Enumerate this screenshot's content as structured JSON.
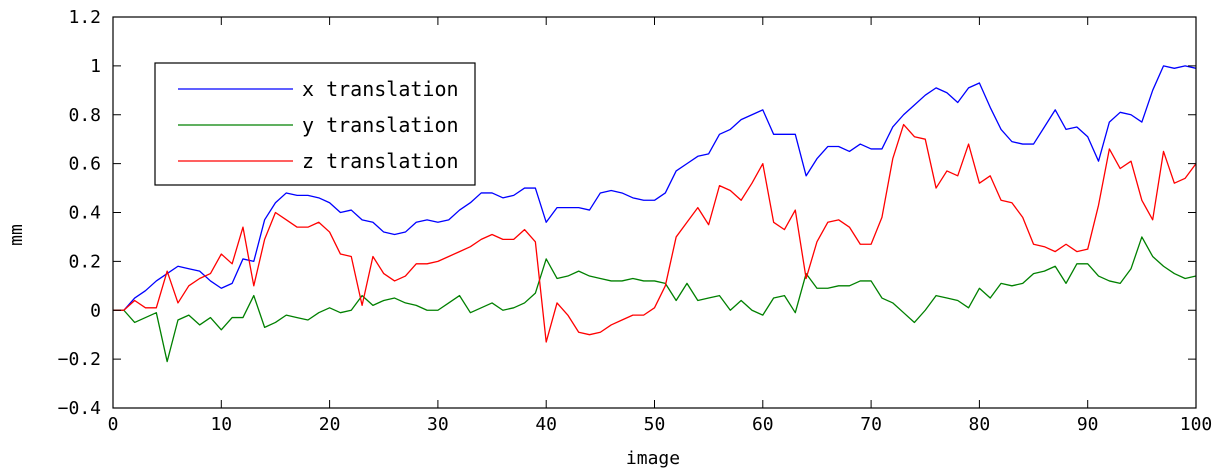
{
  "chart_data": {
    "type": "line",
    "title": "",
    "xlabel": "image",
    "ylabel": "mm",
    "xlim": [
      0,
      100
    ],
    "ylim": [
      -0.4,
      1.2
    ],
    "xticks": [
      0,
      10,
      20,
      30,
      40,
      50,
      60,
      70,
      80,
      90,
      100
    ],
    "yticks": [
      -0.4,
      -0.2,
      0,
      0.2,
      0.4,
      0.6,
      0.8,
      1,
      1.2
    ],
    "xtick_labels": [
      "0",
      "10",
      "20",
      "30",
      "40",
      "50",
      "60",
      "70",
      "80",
      "90",
      "100"
    ],
    "ytick_labels": [
      "−0.4",
      "−0.2",
      "0",
      "0.2",
      "0.4",
      "0.6",
      "0.8",
      "1",
      "1.2"
    ],
    "grid": false,
    "legend_position": "top-left",
    "x": [
      0,
      1,
      2,
      3,
      4,
      5,
      6,
      7,
      8,
      9,
      10,
      11,
      12,
      13,
      14,
      15,
      16,
      17,
      18,
      19,
      20,
      21,
      22,
      23,
      24,
      25,
      26,
      27,
      28,
      29,
      30,
      31,
      32,
      33,
      34,
      35,
      36,
      37,
      38,
      39,
      40,
      41,
      42,
      43,
      44,
      45,
      46,
      47,
      48,
      49,
      50,
      51,
      52,
      53,
      54,
      55,
      56,
      57,
      58,
      59,
      60,
      61,
      62,
      63,
      64,
      65,
      66,
      67,
      68,
      69,
      70,
      71,
      72,
      73,
      74,
      75,
      76,
      77,
      78,
      79,
      80,
      81,
      82,
      83,
      84,
      85,
      86,
      87,
      88,
      89,
      90,
      91,
      92,
      93,
      94,
      95,
      96,
      97,
      98,
      99,
      100
    ],
    "series": [
      {
        "name": "x translation",
        "color": "#0000ff",
        "values": [
          0,
          0,
          0.05,
          0.08,
          0.12,
          0.15,
          0.18,
          0.17,
          0.16,
          0.12,
          0.09,
          0.11,
          0.21,
          0.2,
          0.37,
          0.44,
          0.48,
          0.47,
          0.47,
          0.46,
          0.44,
          0.4,
          0.41,
          0.37,
          0.36,
          0.32,
          0.31,
          0.32,
          0.36,
          0.37,
          0.36,
          0.37,
          0.41,
          0.44,
          0.48,
          0.48,
          0.46,
          0.47,
          0.5,
          0.5,
          0.36,
          0.42,
          0.42,
          0.42,
          0.41,
          0.48,
          0.49,
          0.48,
          0.46,
          0.45,
          0.45,
          0.48,
          0.57,
          0.6,
          0.63,
          0.64,
          0.72,
          0.74,
          0.78,
          0.8,
          0.82,
          0.72,
          0.72,
          0.72,
          0.55,
          0.62,
          0.67,
          0.67,
          0.65,
          0.68,
          0.66,
          0.66,
          0.75,
          0.8,
          0.84,
          0.88,
          0.91,
          0.89,
          0.85,
          0.91,
          0.93,
          0.83,
          0.74,
          0.69,
          0.68,
          0.68,
          0.75,
          0.82,
          0.74,
          0.75,
          0.71,
          0.61,
          0.77,
          0.81,
          0.8,
          0.77,
          0.9,
          1.0,
          0.99,
          1.0,
          0.99
        ]
      },
      {
        "name": "y translation",
        "color": "#008000",
        "values": [
          0,
          0,
          -0.05,
          -0.03,
          -0.01,
          -0.21,
          -0.04,
          -0.02,
          -0.06,
          -0.03,
          -0.08,
          -0.03,
          -0.03,
          0.06,
          -0.07,
          -0.05,
          -0.02,
          -0.03,
          -0.04,
          -0.01,
          0.01,
          -0.01,
          0.0,
          0.06,
          0.02,
          0.04,
          0.05,
          0.03,
          0.02,
          0.0,
          0.0,
          0.03,
          0.06,
          -0.01,
          0.01,
          0.03,
          0.0,
          0.01,
          0.03,
          0.07,
          0.21,
          0.13,
          0.14,
          0.16,
          0.14,
          0.13,
          0.12,
          0.12,
          0.13,
          0.12,
          0.12,
          0.11,
          0.04,
          0.11,
          0.04,
          0.05,
          0.06,
          0.0,
          0.04,
          0.0,
          -0.02,
          0.05,
          0.06,
          -0.01,
          0.15,
          0.09,
          0.09,
          0.1,
          0.1,
          0.12,
          0.12,
          0.05,
          0.03,
          -0.01,
          -0.05,
          0.0,
          0.06,
          0.05,
          0.04,
          0.01,
          0.09,
          0.05,
          0.11,
          0.1,
          0.11,
          0.15,
          0.16,
          0.18,
          0.11,
          0.19,
          0.19,
          0.14,
          0.12,
          0.11,
          0.17,
          0.3,
          0.22,
          0.18,
          0.15,
          0.13,
          0.14
        ]
      },
      {
        "name": "z translation",
        "color": "#ff0000",
        "values": [
          0,
          0,
          0.04,
          0.01,
          0.01,
          0.16,
          0.03,
          0.1,
          0.13,
          0.15,
          0.23,
          0.19,
          0.34,
          0.1,
          0.29,
          0.4,
          0.37,
          0.34,
          0.34,
          0.36,
          0.32,
          0.23,
          0.22,
          0.02,
          0.22,
          0.15,
          0.12,
          0.14,
          0.19,
          0.19,
          0.2,
          0.22,
          0.24,
          0.26,
          0.29,
          0.31,
          0.29,
          0.29,
          0.33,
          0.28,
          -0.13,
          0.03,
          -0.02,
          -0.09,
          -0.1,
          -0.09,
          -0.06,
          -0.04,
          -0.02,
          -0.02,
          0.01,
          0.1,
          0.3,
          0.36,
          0.42,
          0.35,
          0.51,
          0.49,
          0.45,
          0.52,
          0.6,
          0.36,
          0.33,
          0.41,
          0.13,
          0.28,
          0.36,
          0.37,
          0.34,
          0.27,
          0.27,
          0.38,
          0.62,
          0.76,
          0.71,
          0.7,
          0.5,
          0.57,
          0.55,
          0.68,
          0.52,
          0.55,
          0.45,
          0.44,
          0.38,
          0.27,
          0.26,
          0.24,
          0.27,
          0.24,
          0.25,
          0.43,
          0.66,
          0.58,
          0.61,
          0.45,
          0.37,
          0.65,
          0.52,
          0.54,
          0.6
        ]
      }
    ]
  }
}
